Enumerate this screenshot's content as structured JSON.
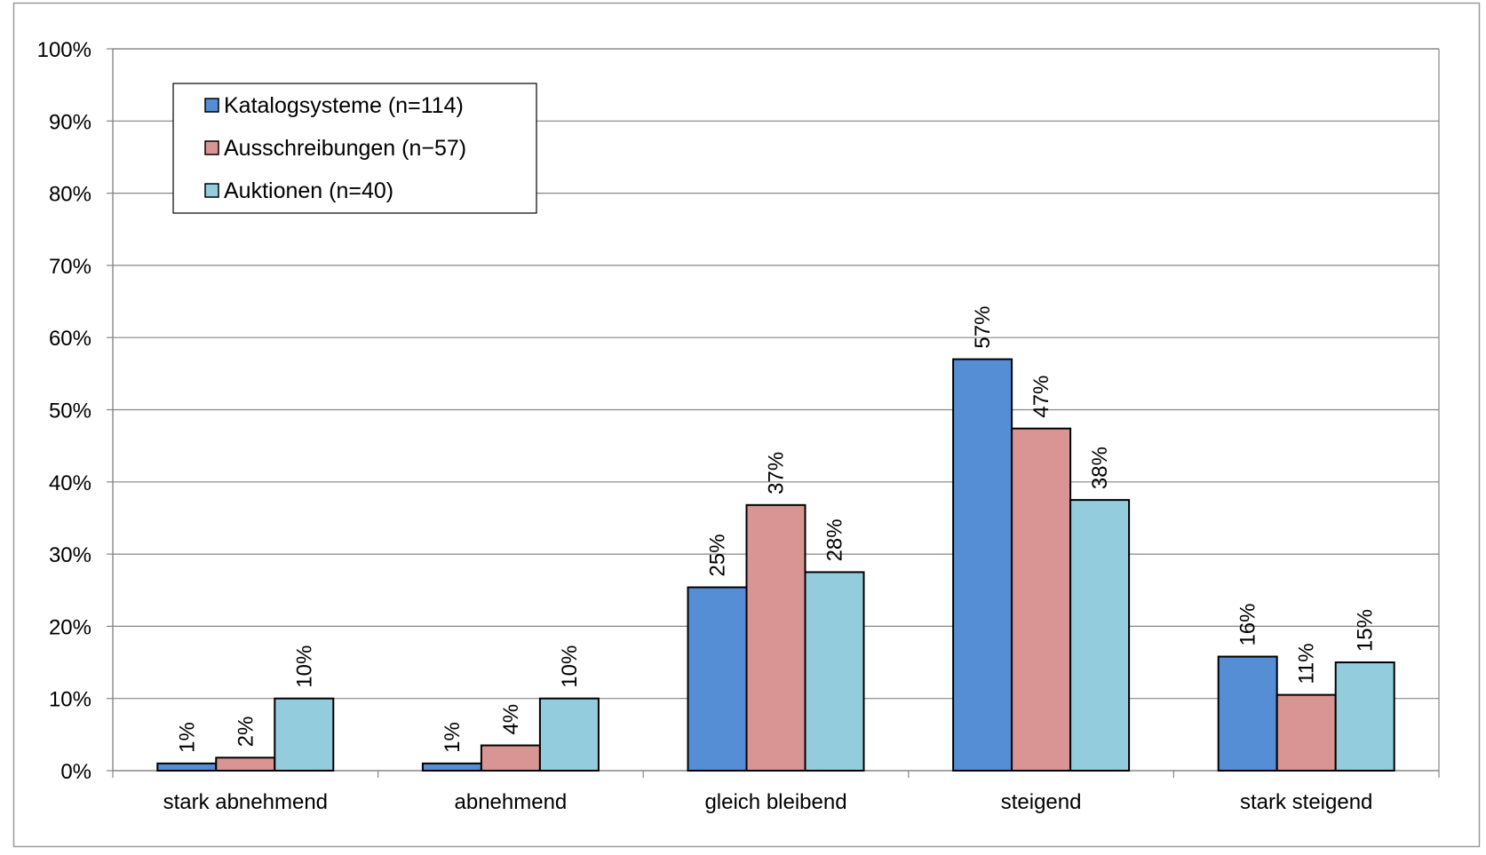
{
  "chart_data": {
    "type": "bar",
    "categories": [
      "stark abnehmend",
      "abnehmend",
      "gleich bleibend",
      "steigend",
      "stark steigend"
    ],
    "series": [
      {
        "name": "Katalogsysteme (n=114)",
        "color": "#558ed5",
        "values": [
          1,
          1,
          25.4,
          57,
          15.8
        ],
        "labels": [
          "1%",
          "1%",
          "25%",
          "57%",
          "16%"
        ]
      },
      {
        "name": "Ausschreibungen (n−57)",
        "color": "#d99594",
        "values": [
          1.8,
          3.5,
          36.8,
          47.4,
          10.5
        ],
        "labels": [
          "2%",
          "4%",
          "37%",
          "47%",
          "11%"
        ]
      },
      {
        "name": "Auktionen (n=40)",
        "color": "#93cddd",
        "values": [
          10,
          10,
          27.5,
          37.5,
          15
        ],
        "labels": [
          "10%",
          "10%",
          "28%",
          "38%",
          "15%"
        ]
      }
    ],
    "yticks": [
      "0%",
      "10%",
      "20%",
      "30%",
      "40%",
      "50%",
      "60%",
      "70%",
      "80%",
      "90%",
      "100%"
    ],
    "ylim": [
      0,
      100
    ],
    "grid": true,
    "legend_position": "top-left",
    "title": "",
    "xlabel": "",
    "ylabel": ""
  }
}
